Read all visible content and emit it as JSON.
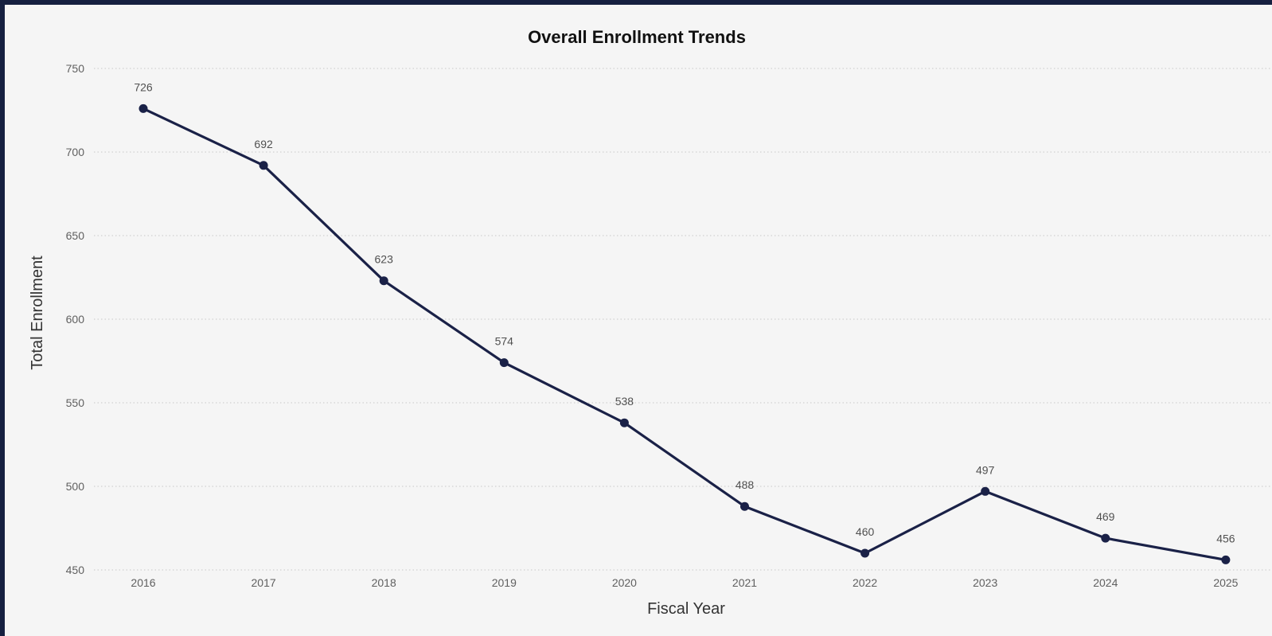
{
  "chart_data": {
    "type": "line",
    "title": "Overall Enrollment Trends",
    "xlabel": "Fiscal Year",
    "ylabel": "Total Enrollment",
    "categories": [
      "2016",
      "2017",
      "2018",
      "2019",
      "2020",
      "2021",
      "2022",
      "2023",
      "2024",
      "2025"
    ],
    "series": [
      {
        "values": [
          726,
          692,
          623,
          574,
          538,
          488,
          460,
          497,
          469,
          456
        ],
        "color": "#1a2147"
      }
    ],
    "ylim": [
      450,
      750
    ],
    "yticks": [
      450,
      500,
      550,
      600,
      650,
      700,
      750
    ],
    "grid": true,
    "data_labels": true
  }
}
